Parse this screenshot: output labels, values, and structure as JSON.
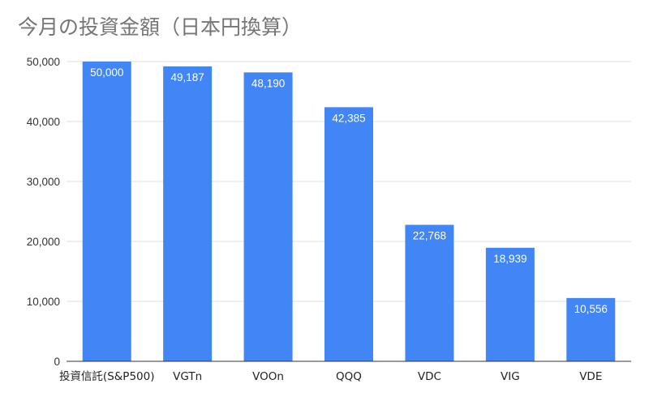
{
  "title": "今月の投資金額（日本円換算）",
  "colors": {
    "bar": "#4285f4",
    "grid": "#e0e0e0",
    "axis": "#333333",
    "title": "#757575"
  },
  "chart_data": {
    "type": "bar",
    "title": "今月の投資金額（日本円換算）",
    "xlabel": "",
    "ylabel": "",
    "categories": [
      "投資信託(S&P500)",
      "VGTn",
      "VOOn",
      "QQQ",
      "VDC",
      "VIG",
      "VDE"
    ],
    "values": [
      50000,
      49187,
      48190,
      42385,
      22768,
      18939,
      10556
    ],
    "value_labels": [
      "50,000",
      "49,187",
      "48,190",
      "42,385",
      "22,768",
      "18,939",
      "10,556"
    ],
    "yticks": [
      0,
      10000,
      20000,
      30000,
      40000,
      50000
    ],
    "ytick_labels": [
      "0",
      "10,000",
      "20,000",
      "30,000",
      "40,000",
      "50,000"
    ],
    "ylim": [
      0,
      50000
    ],
    "grid": true,
    "legend": "none"
  }
}
